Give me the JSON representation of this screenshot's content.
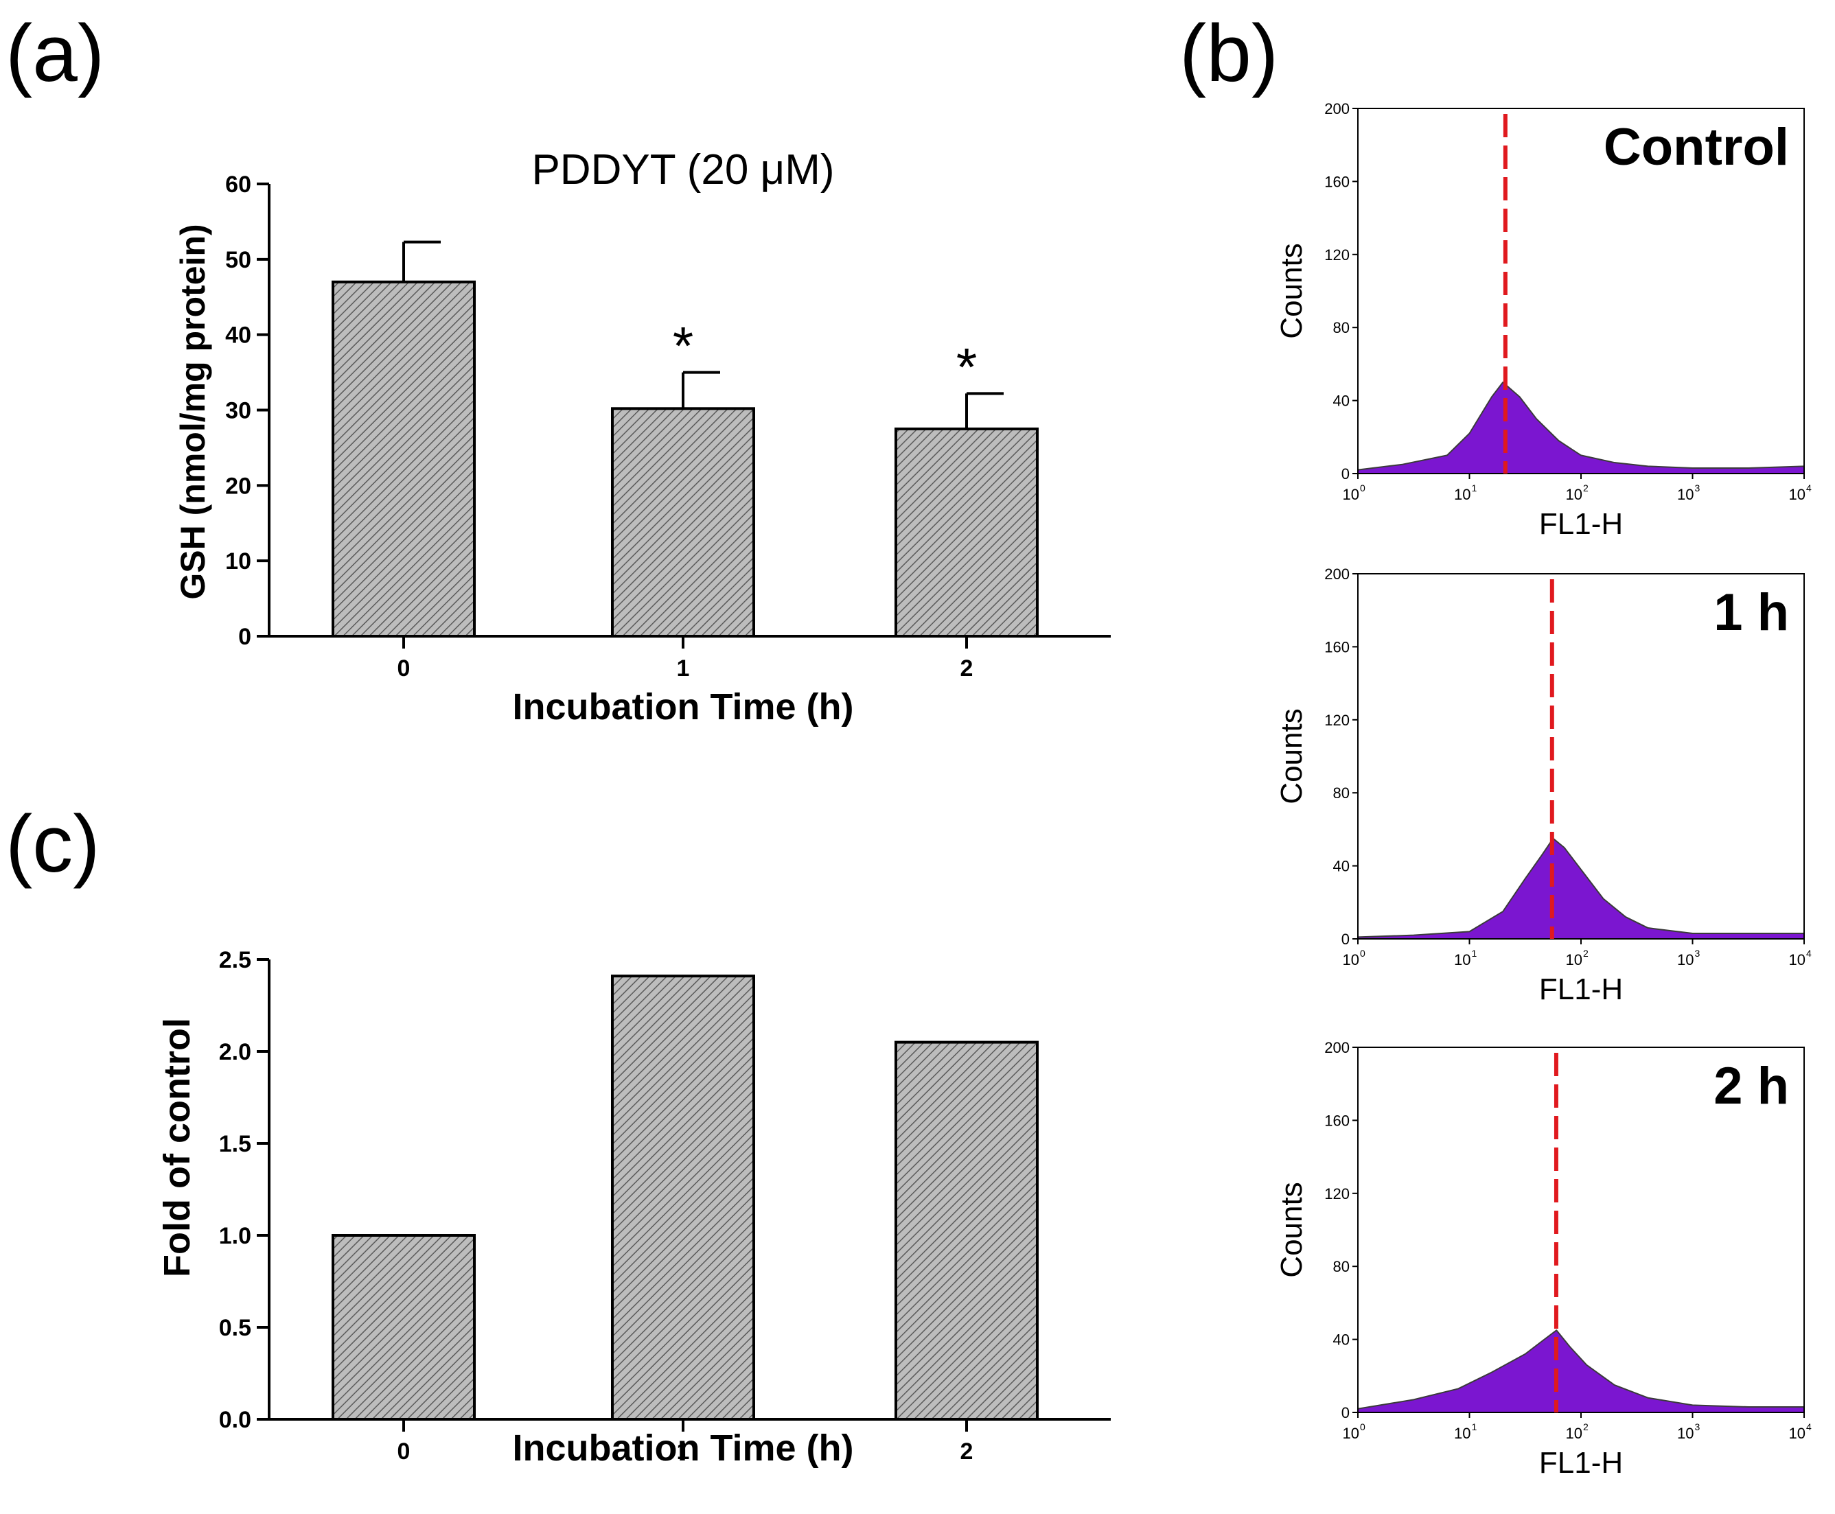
{
  "chart_data": [
    {
      "id": "a",
      "panel_label": "(a)",
      "type": "bar",
      "title": "PDDYT (20 μM)",
      "xlabel": "Incubation Time (h)",
      "ylabel": "GSH (nmol/mg protein)",
      "categories": [
        "0",
        "1",
        "2"
      ],
      "values": [
        47,
        30.2,
        27.5
      ],
      "errors": [
        5.3,
        4.8,
        4.7
      ],
      "annotations": [
        "",
        "*",
        "*"
      ],
      "ylim": [
        0,
        60
      ],
      "yticks": [
        "0",
        "10",
        "20",
        "30",
        "40",
        "50",
        "60"
      ],
      "bar_fill": "#b4b4b4",
      "grid": false
    },
    {
      "id": "c",
      "panel_label": "(c)",
      "type": "bar",
      "title": "",
      "xlabel": "Incubation Time (h)",
      "ylabel": "Fold of control",
      "categories": [
        "0",
        "1",
        "2"
      ],
      "values": [
        1.0,
        2.41,
        2.05
      ],
      "ylim": [
        0,
        2.5
      ],
      "yticks": [
        "0.0",
        "0.5",
        "1.0",
        "1.5",
        "2.0",
        "2.5"
      ],
      "bar_fill": "#b4b4b4",
      "grid": false
    },
    {
      "id": "b",
      "panel_label": "(b)",
      "type": "area",
      "xscale": "log",
      "xlabel": "FL1-H",
      "ylabel": "Counts",
      "xlim": [
        1,
        10000
      ],
      "ylim": [
        0,
        200
      ],
      "yticks": [
        "0",
        "40",
        "80",
        "120",
        "160",
        "200"
      ],
      "xtick_bases": [
        "10",
        "10",
        "10",
        "10",
        "10"
      ],
      "xtick_exponents": [
        "0",
        "1",
        "2",
        "3",
        "4"
      ],
      "fill_color": "#7b16d0",
      "marker_color": "#e0191e",
      "histograms": [
        {
          "label": "Control",
          "marker_x": 21,
          "log_x": [
            0,
            0.4,
            0.8,
            1.0,
            1.1,
            1.2,
            1.3,
            1.45,
            1.6,
            1.8,
            2.0,
            2.3,
            2.6,
            3.0,
            3.5,
            4.0
          ],
          "counts": [
            2,
            5,
            10,
            22,
            32,
            42,
            50,
            42,
            30,
            18,
            10,
            6,
            4,
            3,
            3,
            4
          ]
        },
        {
          "label": "1 h",
          "marker_x": 55,
          "log_x": [
            0,
            0.5,
            1.0,
            1.3,
            1.5,
            1.65,
            1.75,
            1.85,
            2.0,
            2.2,
            2.4,
            2.6,
            3.0,
            3.5,
            4.0
          ],
          "counts": [
            1,
            2,
            4,
            15,
            33,
            46,
            55,
            50,
            38,
            22,
            12,
            6,
            3,
            3,
            3
          ]
        },
        {
          "label": "2 h",
          "marker_x": 60,
          "log_x": [
            0,
            0.5,
            0.9,
            1.2,
            1.5,
            1.65,
            1.78,
            1.9,
            2.05,
            2.3,
            2.6,
            3.0,
            3.5,
            4.0
          ],
          "counts": [
            2,
            7,
            13,
            22,
            32,
            39,
            45,
            36,
            26,
            15,
            8,
            4,
            3,
            3
          ]
        }
      ]
    }
  ]
}
